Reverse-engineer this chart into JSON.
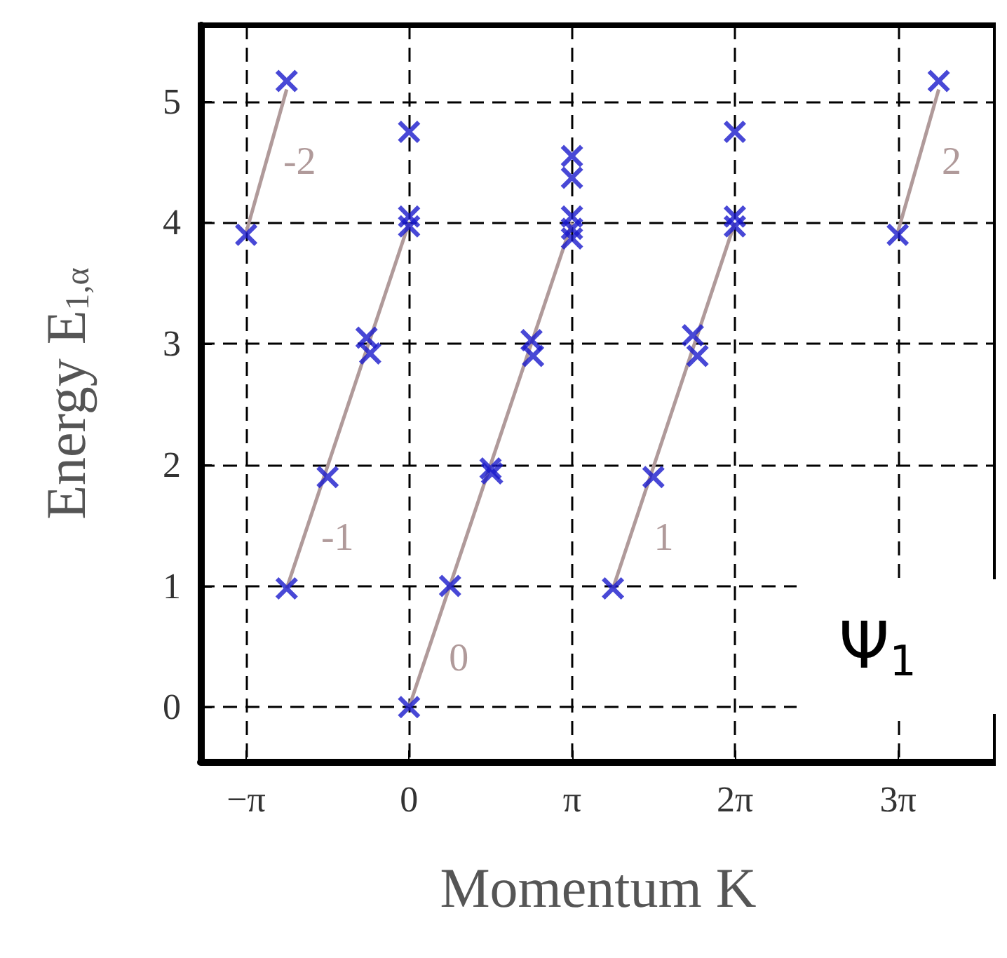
{
  "chart_data": {
    "type": "scatter",
    "xlabel": "Momentum K",
    "ylabel": "Energy E$_{1,α}$",
    "xlim": [
      -4.02,
      11.31
    ],
    "ylim": [
      -0.45,
      5.63
    ],
    "xticks": [
      {
        "value": -3.14159,
        "label": "−π"
      },
      0,
      {
        "value": 3.14159,
        "label": "π"
      },
      {
        "value": 6.28319,
        "label": "2π"
      },
      {
        "value": 9.42478,
        "label": "3π"
      }
    ],
    "yticks": [
      0,
      1,
      2,
      3,
      4,
      5
    ],
    "grid": true,
    "marker": "cross",
    "line_style": "solid",
    "series": [
      {
        "type": "line",
        "color": "#b09a9a",
        "marker": "none",
        "x": [
          -3.14,
          -2.36
        ],
        "values": [
          3.92,
          5.1
        ]
      },
      {
        "type": "line",
        "color": "#b09a9a",
        "marker": "none",
        "x": [
          -2.36,
          0
        ],
        "values": [
          0.98,
          4.0
        ]
      },
      {
        "type": "line",
        "color": "#b09a9a",
        "marker": "none",
        "x": [
          0,
          3.14
        ],
        "values": [
          0,
          4.0
        ]
      },
      {
        "type": "line",
        "color": "#b09a9a",
        "marker": "none",
        "x": [
          3.93,
          6.28
        ],
        "values": [
          0.98,
          4.0
        ]
      },
      {
        "type": "line",
        "color": "#b09a9a",
        "marker": "none",
        "x": [
          9.42,
          10.21
        ],
        "values": [
          3.92,
          5.1
        ]
      },
      {
        "color": "#1a1acc",
        "x": [
          -3.14,
          -2.36,
          -2.36,
          -1.57,
          -0.82,
          -0.75,
          0,
          0,
          0,
          0,
          0.79,
          1.57,
          1.6,
          2.36,
          2.39,
          3.14,
          3.14,
          3.14,
          3.14,
          3.14,
          3.93,
          4.71,
          5.47,
          5.56,
          6.28,
          6.28,
          6.28,
          9.42,
          10.21
        ],
        "values": [
          3.9,
          5.17,
          0.98,
          1.9,
          3.05,
          2.92,
          4.05,
          3.97,
          4.75,
          0,
          1.0,
          1.97,
          1.93,
          3.03,
          2.9,
          4.05,
          3.95,
          3.87,
          4.55,
          4.37,
          0.98,
          1.9,
          3.07,
          2.9,
          4.05,
          3.97,
          4.75,
          3.9,
          5.17
        ]
      }
    ],
    "annotations": [
      {
        "text": "-2",
        "x": -2.76,
        "y": 4.5
      },
      {
        "text": "-1",
        "x": -2.03,
        "y": 1.4
      },
      {
        "text": "0",
        "x": 0.31,
        "y": 0.4
      },
      {
        "text": "1",
        "x": 4.26,
        "y": 1.4
      },
      {
        "text": "2",
        "x": 9.81,
        "y": 4.5
      },
      "Ψ$_{1}$"
    ]
  }
}
